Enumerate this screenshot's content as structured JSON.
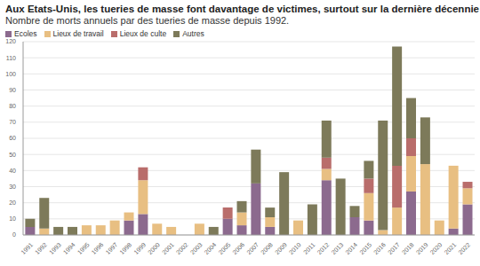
{
  "chart_data": {
    "type": "bar",
    "title": "Aux Etats-Unis, les tueries de masse font davantage de victimes, surtout sur la dernière décennie",
    "subtitle": "Nombre de morts annuels par des tueries de masse depuis 1992.",
    "categories": [
      "1991",
      "1992",
      "1993",
      "1994",
      "1995",
      "1996",
      "1997",
      "1998",
      "1999",
      "2000",
      "2001",
      "2002",
      "2003",
      "2004",
      "2005",
      "2006",
      "2007",
      "2008",
      "2009",
      "2010",
      "2011",
      "2012",
      "2013",
      "2014",
      "2015",
      "2016",
      "2017",
      "2018",
      "2019",
      "2020",
      "2021",
      "2022"
    ],
    "series": [
      {
        "name": "Ecoles",
        "color": "#8c6a8e",
        "values": [
          5,
          0,
          0,
          0,
          0,
          0,
          0,
          9,
          13,
          0,
          0,
          0,
          0,
          0,
          10,
          6,
          32,
          5,
          0,
          0,
          0,
          34,
          0,
          11,
          9,
          0,
          0,
          27,
          0,
          0,
          4,
          19
        ]
      },
      {
        "name": "Lieux de travail",
        "color": "#e8bf82",
        "values": [
          0,
          4,
          0,
          0,
          6,
          6,
          9,
          5,
          21,
          7,
          5,
          0,
          7,
          0,
          0,
          8,
          0,
          6,
          0,
          9,
          0,
          7,
          0,
          0,
          17,
          3,
          17,
          22,
          44,
          9,
          39,
          10
        ]
      },
      {
        "name": "Lieux de culte",
        "color": "#b96d6b",
        "values": [
          0,
          0,
          0,
          0,
          0,
          0,
          0,
          0,
          8,
          0,
          0,
          0,
          0,
          0,
          7,
          0,
          0,
          0,
          0,
          0,
          0,
          7,
          0,
          0,
          9,
          0,
          26,
          11,
          0,
          0,
          0,
          4
        ]
      },
      {
        "name": "Autres",
        "color": "#7d7a5a",
        "values": [
          5,
          19,
          5,
          5,
          0,
          0,
          0,
          0,
          0,
          0,
          0,
          0,
          0,
          5,
          0,
          7,
          21,
          6,
          39,
          0,
          19,
          23,
          35,
          7,
          11,
          68,
          74,
          25,
          29,
          0,
          0,
          0
        ]
      }
    ],
    "ylim": [
      0,
      120
    ],
    "yticks": [
      0,
      10,
      20,
      30,
      40,
      50,
      60,
      70,
      80,
      90,
      100,
      110,
      120
    ],
    "grid": true,
    "stacked": true,
    "legend": "top-left"
  }
}
